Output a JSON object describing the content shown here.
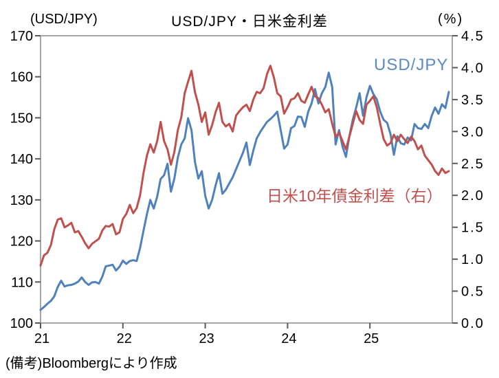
{
  "chart_data": {
    "type": "line",
    "title": "USD/JPY・日米金利差",
    "note": "(備考)Bloombergにより作成",
    "left_axis": {
      "label": "(USD/JPY)",
      "min": 100,
      "max": 170,
      "tick_step": 10,
      "tick_labels": [
        "100",
        "110",
        "120",
        "130",
        "140",
        "150",
        "160",
        "170"
      ]
    },
    "right_axis": {
      "label": "(%)",
      "min": 0.0,
      "max": 4.5,
      "tick_step": 0.5,
      "tick_labels": [
        "0.0",
        "0.5",
        "1.0",
        "1.5",
        "2.0",
        "2.5",
        "3.0",
        "3.5",
        "4.0",
        "4.5"
      ]
    },
    "x_axis": {
      "tick_labels": [
        "21",
        "22",
        "23",
        "24",
        "25"
      ],
      "years_span": 5,
      "grid": false
    },
    "series": [
      {
        "name": "USD/JPY",
        "axis": "left",
        "color": "#4f81bd",
        "label_color": "#5b8ac5",
        "start": 0,
        "step_years": 0.0416667,
        "values": [
          103.2,
          103.9,
          104.7,
          105.4,
          106.5,
          108.8,
          110.3,
          108.9,
          109.2,
          109.3,
          109.6,
          110.1,
          111.1,
          110.0,
          109.3,
          109.9,
          110.0,
          109.6,
          111.3,
          113.8,
          114.0,
          114.2,
          112.8,
          113.7,
          115.2,
          114.4,
          115.1,
          115.3,
          115.1,
          118.3,
          122.5,
          126.5,
          130.0,
          127.9,
          130.8,
          135.1,
          136.0,
          138.8,
          132.0,
          135.2,
          140.3,
          143.5,
          145.0,
          149.9,
          147.0,
          139.3,
          135.2,
          137.0,
          131.0,
          127.9,
          130.0,
          133.5,
          136.5,
          131.5,
          132.5,
          134.0,
          135.5,
          137.5,
          139.5,
          141.5,
          144.0,
          138.5,
          142.0,
          145.0,
          146.5,
          147.8,
          149.0,
          149.7,
          150.5,
          151.5,
          147.0,
          142.5,
          143.5,
          147.5,
          148.0,
          150.3,
          150.2,
          147.8,
          151.5,
          153.5,
          157.0,
          153.5,
          156.0,
          157.5,
          161.0,
          157.5,
          143.5,
          147.0,
          143.0,
          140.5,
          145.5,
          149.5,
          152.5,
          156.0,
          150.5,
          155.0,
          157.8,
          155.8,
          154.5,
          151.5,
          149.5,
          148.8,
          146.0,
          141.0,
          145.5,
          143.8,
          143.5,
          145.2,
          144.5,
          148.5,
          147.5,
          147.3,
          148.5,
          147.5,
          150.5,
          152.5,
          151.0,
          153.3,
          152.4,
          156.3
        ]
      },
      {
        "name": "日米10年債金利差（右）",
        "axis": "right",
        "color": "#c0504d",
        "label_color": "#c0504d",
        "start": 0,
        "step_years": 0.0416667,
        "values": [
          0.9,
          1.06,
          1.1,
          1.22,
          1.47,
          1.62,
          1.64,
          1.5,
          1.53,
          1.57,
          1.42,
          1.44,
          1.35,
          1.25,
          1.17,
          1.24,
          1.28,
          1.32,
          1.45,
          1.52,
          1.51,
          1.55,
          1.39,
          1.42,
          1.63,
          1.71,
          1.85,
          1.72,
          1.8,
          2.0,
          2.35,
          2.62,
          2.8,
          2.67,
          2.85,
          3.15,
          2.85,
          2.72,
          2.48,
          2.68,
          3.02,
          3.22,
          3.6,
          3.78,
          3.95,
          3.62,
          3.42,
          3.15,
          3.3,
          2.95,
          3.1,
          3.3,
          3.45,
          3.15,
          3.08,
          3.12,
          3.0,
          3.25,
          3.32,
          3.38,
          3.42,
          3.32,
          3.5,
          3.62,
          3.6,
          3.68,
          3.9,
          4.03,
          3.85,
          3.6,
          3.55,
          3.28,
          3.38,
          3.5,
          3.52,
          3.6,
          3.48,
          3.45,
          3.58,
          3.7,
          3.55,
          3.52,
          3.42,
          3.3,
          3.35,
          3.12,
          2.92,
          2.98,
          2.85,
          2.72,
          2.92,
          3.12,
          3.32,
          3.18,
          3.12,
          3.42,
          3.48,
          3.55,
          3.38,
          3.12,
          2.88,
          2.78,
          2.82,
          2.95,
          2.85,
          2.95,
          2.88,
          2.82,
          2.92,
          2.85,
          2.72,
          2.78,
          2.62,
          2.55,
          2.48,
          2.38,
          2.32,
          2.42,
          2.35,
          2.38
        ]
      }
    ],
    "style_colors": {
      "axis_border": "#a6a6a6",
      "tick_mark": "#595959"
    }
  }
}
